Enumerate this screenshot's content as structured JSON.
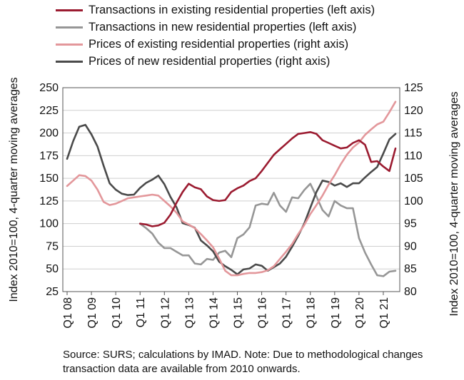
{
  "chart_data": {
    "type": "line",
    "ylabel_left": "Index 2010=100, 4-quarter moving averages",
    "ylabel_right": "Index 2010=100, 4-quarter moving averages",
    "ylim_left": [
      25,
      250
    ],
    "ylim_right": [
      80,
      125
    ],
    "yticks_left": [
      "250",
      "225",
      "200",
      "175",
      "150",
      "125",
      "100",
      "75",
      "50",
      "25"
    ],
    "yticks_right": [
      "125",
      "120",
      "115",
      "110",
      "105",
      "100",
      "95",
      "90",
      "85",
      "80"
    ],
    "x_start": "2008Q1",
    "x_tick_labels": [
      "Q1 08",
      "Q1 09",
      "Q1 10",
      "Q1 11",
      "Q1 12",
      "Q1 13",
      "Q1 14",
      "Q1 15",
      "Q1 16",
      "Q1 17",
      "Q1 18",
      "Q1 19",
      "Q1 20",
      "Q1 21"
    ],
    "grid": true,
    "legend_position": "top",
    "series": [
      {
        "name": "Transactions in existing residential properties (left axis)",
        "axis": "left",
        "color": "#9b1b30",
        "start": "2011Q1",
        "values": [
          100,
          99,
          97,
          98,
          101,
          110,
          123,
          135,
          144,
          140,
          138,
          130,
          126,
          125,
          126,
          135,
          139,
          142,
          147,
          150,
          158,
          167,
          176,
          182,
          188,
          194,
          199,
          200,
          201,
          199,
          192,
          189,
          186,
          183,
          184,
          189,
          192,
          187,
          168,
          169,
          163,
          158,
          183
        ]
      },
      {
        "name": "Transactions in new residential properties (left axis)",
        "axis": "left",
        "color": "#969696",
        "start": "2011Q1",
        "values": [
          100,
          95,
          89,
          79,
          73,
          73,
          69,
          65,
          65,
          56,
          55,
          61,
          60,
          68,
          70,
          63,
          84,
          88,
          96,
          120,
          122,
          121,
          134,
          120,
          113,
          129,
          128,
          137,
          144,
          130,
          115,
          108,
          125,
          120,
          117,
          117,
          84,
          68,
          55,
          43,
          42,
          47,
          48
        ]
      },
      {
        "name": "Prices of existing residential properties (right axis)",
        "axis": "right",
        "color": "#e3979b",
        "start": "2008Q1",
        "values": [
          103.3,
          104.5,
          105.7,
          105.5,
          104.5,
          102.5,
          99.8,
          99.1,
          99.4,
          100,
          100.6,
          100.8,
          101,
          101.2,
          101.4,
          101.2,
          100,
          98.8,
          97.4,
          95.5,
          94.8,
          94,
          92.7,
          91.3,
          89.8,
          87.3,
          84.6,
          83.6,
          83.6,
          83.9,
          84.1,
          84.1,
          84.3,
          84.7,
          85.6,
          87.2,
          88.8,
          90.5,
          92.7,
          94.7,
          97.1,
          99.1,
          101.2,
          103.6,
          105.7,
          108.1,
          110.2,
          111.8,
          112.9,
          114.6,
          115.8,
          116.9,
          117.5,
          119.6,
          121.9
        ]
      },
      {
        "name": "Prices of new residential properties (right axis)",
        "axis": "right",
        "color": "#4a4a4a",
        "start": "2008Q1",
        "values": [
          109.3,
          113.2,
          116.4,
          116.8,
          114.7,
          112,
          107.8,
          103.9,
          102.5,
          101.6,
          101.3,
          101.4,
          102.9,
          104,
          104.7,
          105.6,
          103.7,
          100.9,
          98.6,
          95.1,
          94.7,
          94.1,
          91.3,
          90.2,
          88.9,
          86.6,
          85.6,
          84.8,
          83.8,
          84.9,
          85.1,
          86,
          85.7,
          84.6,
          85.4,
          86.2,
          87.7,
          89.9,
          92.3,
          95,
          98.5,
          102,
          104.5,
          104.2,
          103.4,
          103.9,
          103.1,
          103.9,
          103.9,
          105.2,
          106.4,
          107.5,
          110.5,
          113.6,
          114.8
        ]
      }
    ]
  },
  "source_note": "Source: SURS; calculations by IMAD. Note: Due to methodological changes transaction data are available from 2010 onwards."
}
